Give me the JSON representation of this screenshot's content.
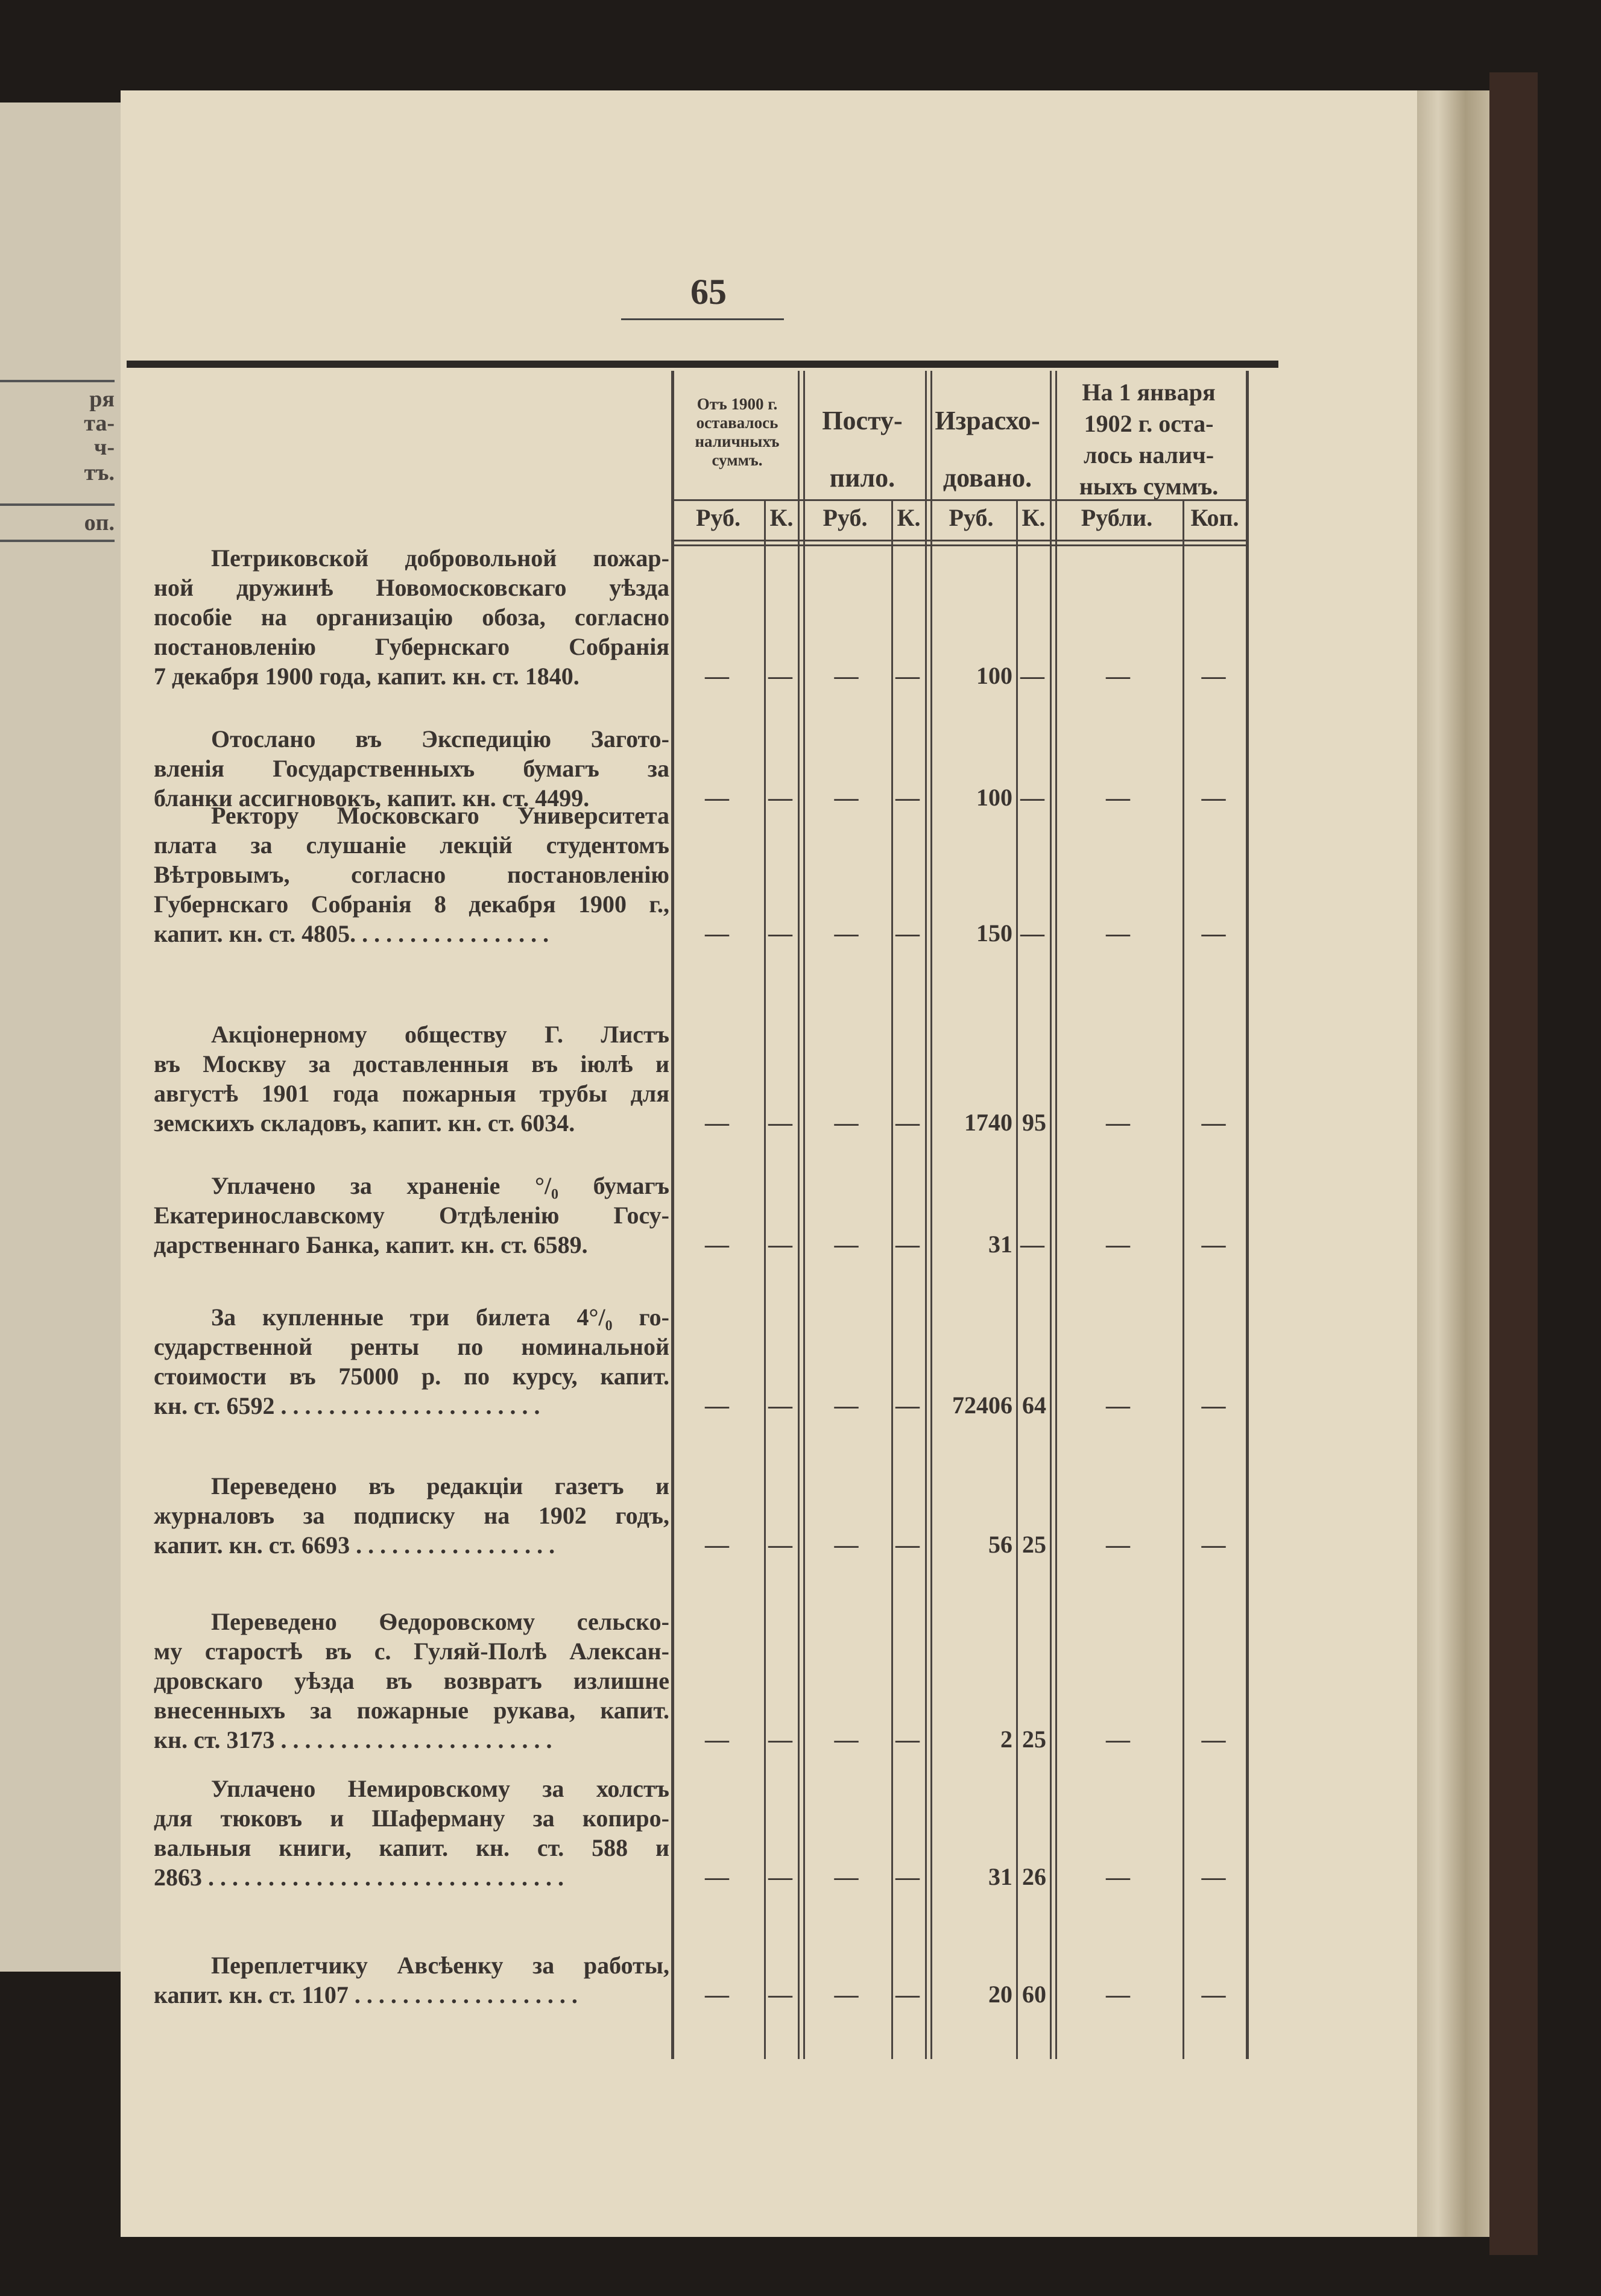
{
  "prev_page_fragment": [
    "ря",
    "та-",
    "ч-",
    "тъ.",
    "оп."
  ],
  "page_number": "65",
  "table": {
    "headers": [
      "Отъ 1900 г. оставалось наличныхъ суммъ.",
      "Посту- пило.",
      "Израсхо- довано.",
      "На 1 января 1902 г. оста- лось налич- ныхъ суммъ."
    ],
    "subheaders": [
      "Руб.",
      "К.",
      "Руб.",
      "К.",
      "Руб.",
      "К.",
      "Рубли.",
      "Коп."
    ],
    "entries": [
      {
        "lines": [
          "Петриковской добровольной пожар-",
          "ной дружинѣ Новомосковскаго уѣзда",
          "пособіе на организацію обоза, согласно",
          "постановленію Губернскаго Собранія",
          "7 декабря 1900 года, капит. кн. ст. 1840."
        ],
        "values": [
          "—",
          "—",
          "—",
          "—",
          "100",
          "—",
          "—",
          "—"
        ]
      },
      {
        "lines": [
          "Отослано въ Экспедицію Загото-",
          "вленія Государственныхъ бумагъ за",
          "бланки ассигновокъ, капит. кн. ст. 4499."
        ],
        "values": [
          "—",
          "—",
          "—",
          "—",
          "100",
          "—",
          "—",
          "—"
        ]
      },
      {
        "lines": [
          "Ректору Московскаго Университета",
          "плата за слушаніе лекцій студентомъ",
          "Вѣтровымъ, согласно постановленію",
          "Губернскаго Собранія 8 декабря 1900 г.,",
          "капит. кн. ст. 4805. . . . . . . . . . . . . . . . ."
        ],
        "values": [
          "—",
          "—",
          "—",
          "—",
          "150",
          "—",
          "—",
          "—"
        ]
      },
      {
        "lines": [
          "Акціонерному обществу Г. Листъ",
          "въ Москву за доставленныя въ іюлѣ и",
          "августѣ 1901 года пожарныя трубы для",
          "земскихъ складовъ, капит. кн. ст. 6034."
        ],
        "values": [
          "—",
          "—",
          "—",
          "—",
          "1740",
          "95",
          "—",
          "—"
        ]
      },
      {
        "lines": [
          "Уплачено за храненіе °/₀ бумагъ",
          "Екатеринославскому Отдѣленію Госу-",
          "дарственнаго Банка, капит. кн. ст. 6589."
        ],
        "values": [
          "—",
          "—",
          "—",
          "—",
          "31",
          "—",
          "—",
          "—"
        ]
      },
      {
        "lines": [
          "За купленные три билета 4°/₀ го-",
          "сударственной ренты по номинальной",
          "стоимости въ 75000 р. по курсу, капит.",
          "кн. ст. 6592 . . . . . . . . . . . . . . . . . . . . . ."
        ],
        "values": [
          "—",
          "—",
          "—",
          "—",
          "72406",
          "64",
          "—",
          "—"
        ]
      },
      {
        "lines": [
          "Переведено въ редакціи газетъ и",
          "журналовъ за подписку на 1902 годъ,",
          "капит. кн. ст. 6693 . . . . . . . . . . . . . . . . ."
        ],
        "values": [
          "—",
          "—",
          "—",
          "—",
          "56",
          "25",
          "—",
          "—"
        ]
      },
      {
        "lines": [
          "Переведено Ѳедоровскому сельско-",
          "му старостѣ въ с. Гуляй-Полѣ Алексан-",
          "дровскаго уѣзда въ возвратъ излишне",
          "внесенныхъ за пожарные рукава, капит.",
          "кн. ст. 3173 . . . . . . . . . . . . . . . . . . . . . . ."
        ],
        "values": [
          "—",
          "—",
          "—",
          "—",
          "2",
          "25",
          "—",
          "—"
        ]
      },
      {
        "lines": [
          "Уплачено Немировскому за холстъ",
          "для тюковъ и Шаферману за копиро-",
          "вальныя книги, капит. кн. ст. 588 и",
          "2863 . . . . . . . . . . . . . . . . . . . . . . . . . . . . . ."
        ],
        "values": [
          "—",
          "—",
          "—",
          "—",
          "31",
          "26",
          "—",
          "—"
        ]
      },
      {
        "lines": [
          "Переплетчику Авсѣенку за работы,",
          "капит. кн. ст. 1107 . . . . . . . . . . . . . . . . . . ."
        ],
        "values": [
          "—",
          "—",
          "—",
          "—",
          "20",
          "60",
          "—",
          "—"
        ]
      }
    ]
  }
}
